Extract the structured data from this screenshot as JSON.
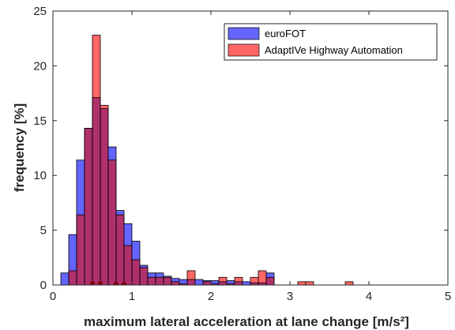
{
  "chart_data": {
    "type": "bar",
    "xlabel": "maximum lateral acceleration at lane change [m/s²]",
    "ylabel": "frequency [%]",
    "xlim": [
      0,
      5
    ],
    "ylim": [
      0,
      25
    ],
    "x_ticks": [
      "0",
      "1",
      "2",
      "3",
      "4",
      "5"
    ],
    "y_ticks": [
      "0",
      "5",
      "10",
      "15",
      "20",
      "25"
    ],
    "bin_width": 0.1,
    "bin_starts": [
      0.1,
      0.2,
      0.3,
      0.4,
      0.5,
      0.6,
      0.7,
      0.8,
      0.9,
      1.0,
      1.1,
      1.2,
      1.3,
      1.4,
      1.5,
      1.6,
      1.7,
      1.8,
      1.9,
      2.0,
      2.1,
      2.2,
      2.3,
      2.4,
      2.5,
      2.6,
      2.7,
      2.8,
      2.9,
      3.0,
      3.1,
      3.2,
      3.3,
      3.4,
      3.5,
      3.6,
      3.7
    ],
    "legend_position": "top-right",
    "grid": false,
    "series": [
      {
        "name": "euroFOT",
        "color": "#6464ff",
        "values": [
          1.1,
          4.6,
          11.4,
          14.3,
          17.1,
          16.1,
          12.6,
          6.8,
          5.6,
          4.0,
          1.8,
          1.1,
          1.1,
          0.8,
          0.6,
          0.5,
          0.5,
          0.5,
          0.4,
          0.4,
          0.3,
          0.4,
          0.3,
          0.3,
          0.2,
          0.2,
          1.1,
          0,
          0,
          0,
          0,
          0,
          0,
          0,
          0,
          0,
          0
        ]
      },
      {
        "name": "AdaptIVe Highway Automation",
        "color": "#ff6666",
        "values": [
          0,
          1.3,
          6.4,
          14.3,
          22.8,
          16.4,
          11.4,
          6.4,
          3.6,
          2.3,
          1.6,
          0.7,
          0.7,
          0.7,
          0.3,
          0.1,
          1.3,
          0,
          0.3,
          0.1,
          0.7,
          0.1,
          0.7,
          0,
          0.7,
          1.3,
          0.7,
          0,
          0,
          0,
          0.3,
          0.3,
          0,
          0,
          0,
          0,
          0.3
        ]
      }
    ],
    "overlap_color": "#b0306d",
    "baseline_points": [
      {
        "x": 0.5,
        "y": 0.15
      },
      {
        "x": 0.6,
        "y": 0.15
      },
      {
        "x": 0.8,
        "y": 0.1
      },
      {
        "x": 0.9,
        "y": 0.08
      }
    ]
  }
}
